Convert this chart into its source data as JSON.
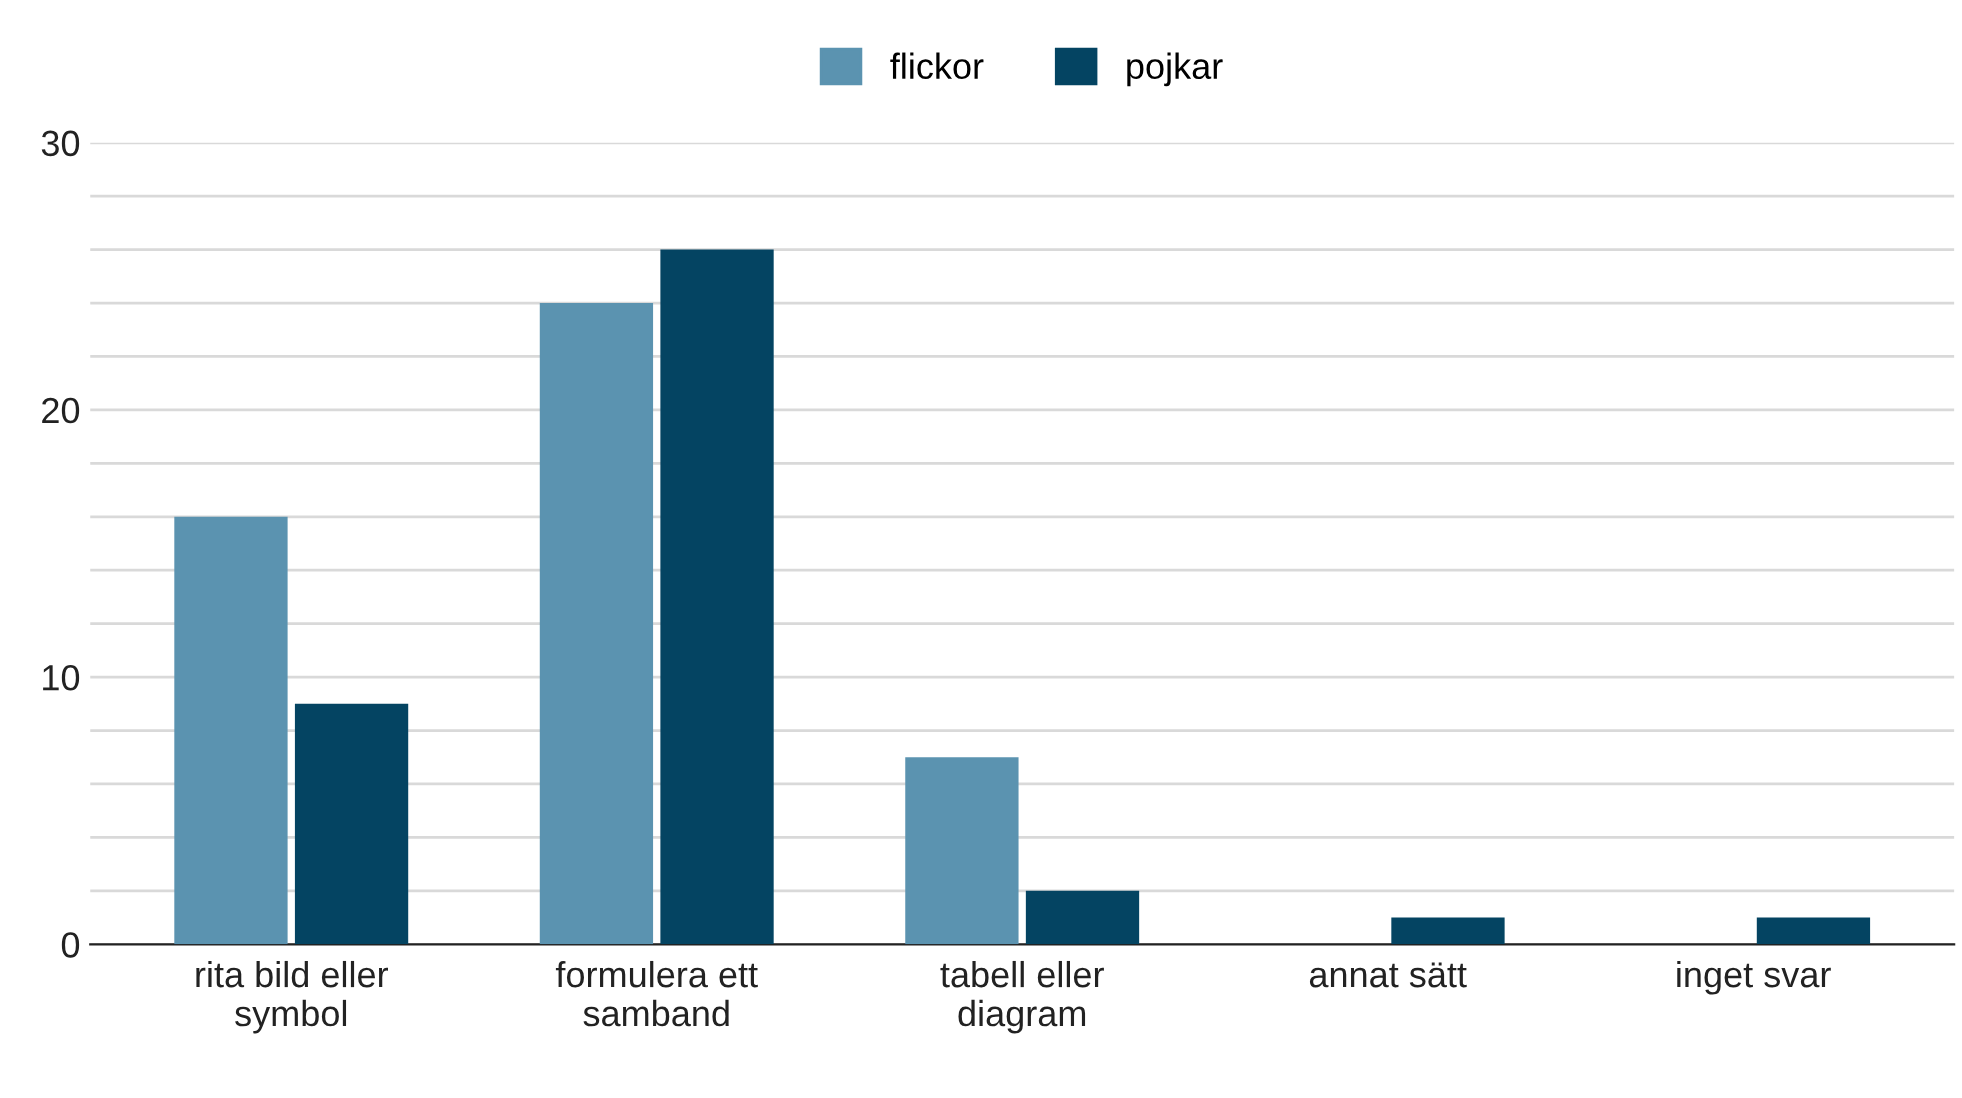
{
  "chart_data": {
    "type": "bar",
    "categories": [
      "rita bild eller\nsymbol",
      "formulera ett\nsamband",
      "tabell eller\ndiagram",
      "annat sätt",
      "inget svar"
    ],
    "series": [
      {
        "name": "flickor",
        "color": "#5b93b0",
        "values": [
          16,
          24,
          7,
          0,
          0
        ]
      },
      {
        "name": "pojkar",
        "color": "#044462",
        "values": [
          9,
          26,
          2,
          1,
          1
        ]
      }
    ],
    "ylim": [
      0,
      30
    ],
    "yticks": [
      0,
      {
        "value": 2,
        "label": null
      },
      {
        "value": 4,
        "label": null
      },
      {
        "value": 6,
        "label": null
      },
      {
        "value": 8,
        "label": null
      },
      10,
      {
        "value": 12,
        "label": null
      },
      {
        "value": 14,
        "label": null
      },
      {
        "value": 16,
        "label": null
      },
      {
        "value": 18,
        "label": null
      },
      20,
      {
        "value": 22,
        "label": null
      },
      {
        "value": 24,
        "label": null
      },
      {
        "value": 26,
        "label": null
      },
      {
        "value": 28,
        "label": null
      },
      30
    ],
    "grid": "y",
    "legend": "top"
  }
}
